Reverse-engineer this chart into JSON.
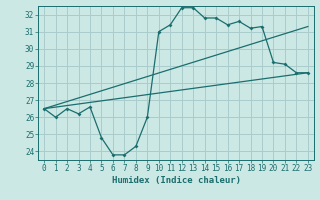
{
  "xlabel": "Humidex (Indice chaleur)",
  "bg_color": "#cce8e4",
  "grid_color": "#aacccc",
  "line_color": "#1a6e6e",
  "xlim": [
    -0.5,
    23.5
  ],
  "ylim": [
    23.5,
    32.5
  ],
  "xticks": [
    0,
    1,
    2,
    3,
    4,
    5,
    6,
    7,
    8,
    9,
    10,
    11,
    12,
    13,
    14,
    15,
    16,
    17,
    18,
    19,
    20,
    21,
    22,
    23
  ],
  "yticks": [
    24,
    25,
    26,
    27,
    28,
    29,
    30,
    31,
    32
  ],
  "main_x": [
    0,
    1,
    2,
    3,
    4,
    5,
    6,
    7,
    8,
    9,
    10,
    11,
    12,
    13,
    14,
    15,
    16,
    17,
    18,
    19,
    20,
    21,
    22,
    23
  ],
  "main_y": [
    26.5,
    26.0,
    26.5,
    26.2,
    26.6,
    24.8,
    23.8,
    23.8,
    24.3,
    26.0,
    31.0,
    31.4,
    32.4,
    32.4,
    31.8,
    31.8,
    31.4,
    31.6,
    31.2,
    31.3,
    29.2,
    29.1,
    28.6,
    28.6
  ],
  "line1_x": [
    0,
    23
  ],
  "line1_y": [
    26.5,
    31.3
  ],
  "line2_x": [
    0,
    23
  ],
  "line2_y": [
    26.5,
    28.6
  ],
  "tick_font_size": 5.5,
  "xlabel_font_size": 6.5
}
